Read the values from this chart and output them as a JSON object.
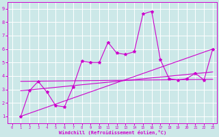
{
  "xlabel": "Windchill (Refroidissement éolien,°C)",
  "background_color": "#cce8e8",
  "line_color": "#cc00cc",
  "grid_color": "#ffffff",
  "xlim": [
    -0.5,
    23.5
  ],
  "ylim": [
    0.5,
    9.5
  ],
  "xticks": [
    0,
    1,
    2,
    3,
    4,
    5,
    6,
    7,
    8,
    9,
    10,
    11,
    12,
    13,
    14,
    15,
    16,
    17,
    18,
    19,
    20,
    21,
    22,
    23
  ],
  "yticks": [
    1,
    2,
    3,
    4,
    5,
    6,
    7,
    8,
    9
  ],
  "series1_x": [
    1,
    2,
    3,
    4,
    5,
    6,
    7,
    8,
    9,
    10,
    11,
    12,
    13,
    14,
    15,
    16,
    17,
    18,
    19,
    20,
    21,
    22,
    23
  ],
  "series1_y": [
    1.0,
    2.9,
    3.6,
    2.8,
    1.8,
    1.7,
    3.2,
    5.1,
    5.0,
    5.0,
    6.5,
    5.7,
    5.6,
    5.8,
    8.6,
    8.8,
    5.2,
    3.8,
    3.7,
    3.8,
    4.2,
    3.7,
    6.0
  ],
  "line1_x": [
    1,
    23
  ],
  "line1_y": [
    1.0,
    6.0
  ],
  "line2_x": [
    1,
    23
  ],
  "line2_y": [
    2.9,
    4.3
  ],
  "line3_x": [
    1,
    23
  ],
  "line3_y": [
    3.6,
    3.75
  ]
}
